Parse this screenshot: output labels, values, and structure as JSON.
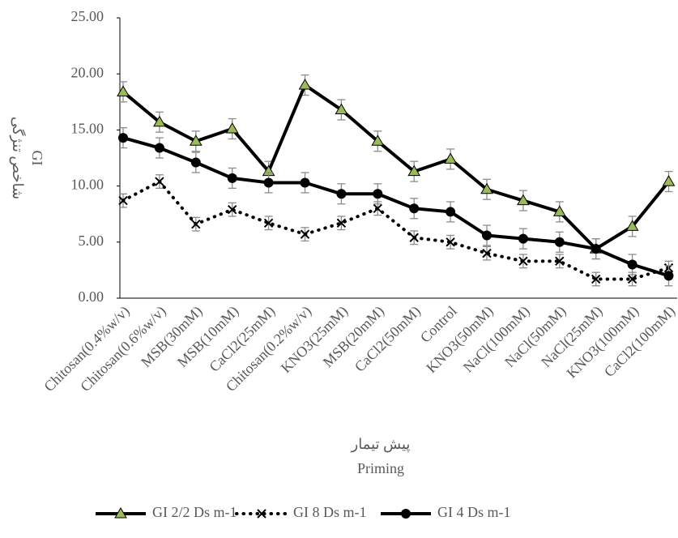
{
  "chart_data": {
    "type": "line",
    "y_label": [
      "شاخص تنژگی",
      "GI"
    ],
    "x_label": [
      "پیش تیمار",
      "Priming"
    ],
    "categories": [
      "Chitosan(0.4%w/v)",
      "Chitosan(0.6%w/v)",
      "MSB(30mM)",
      "MSB(10mM)",
      "CaCl2(25mM)",
      "Chitosan(0.2%w/v)",
      "KNO3(25mM)",
      "MSB(20mM)",
      "CaCl2(50mM)",
      "Control",
      "KNO3(50mM)",
      "NaCl(100mM)",
      "NaCl(50mM)",
      "NaCl(25mM)",
      "KNO3(100mM)",
      "CaCl2(100mM)"
    ],
    "series": [
      {
        "name": "GI 2/2 Ds m-1",
        "color": "#000000",
        "marker": "triangle",
        "marker_color": "#9bbb59",
        "dash": false,
        "values": [
          18.4,
          15.7,
          14.0,
          15.1,
          11.3,
          19.0,
          16.8,
          14.0,
          11.3,
          12.4,
          9.7,
          8.7,
          7.7,
          4.4,
          6.4,
          10.4
        ],
        "errors": [
          0.9,
          0.9,
          0.9,
          0.9,
          0.9,
          0.9,
          0.9,
          0.9,
          0.9,
          0.9,
          0.9,
          0.9,
          0.9,
          0.9,
          0.9,
          0.9
        ]
      },
      {
        "name": "GI 8 Ds m-1",
        "color": "#000000",
        "marker": "x",
        "marker_color": "#000000",
        "dash": true,
        "values": [
          8.7,
          10.4,
          6.6,
          7.9,
          6.7,
          5.7,
          6.7,
          8.0,
          5.4,
          5.0,
          4.0,
          3.3,
          3.3,
          1.7,
          1.7,
          2.7
        ],
        "errors": [
          0.6,
          0.6,
          0.6,
          0.6,
          0.6,
          0.6,
          0.6,
          0.6,
          0.6,
          0.6,
          0.6,
          0.6,
          0.6,
          0.6,
          0.6,
          0.6
        ]
      },
      {
        "name": "GI 4 Ds m-1",
        "color": "#000000",
        "marker": "circle",
        "marker_color": "#000000",
        "dash": false,
        "values": [
          14.3,
          13.4,
          12.1,
          10.7,
          10.3,
          10.3,
          9.3,
          9.3,
          8.0,
          7.7,
          5.6,
          5.3,
          5.0,
          4.4,
          3.0,
          2.0
        ],
        "errors": [
          0.9,
          0.9,
          0.9,
          0.9,
          0.9,
          0.9,
          0.9,
          0.9,
          0.9,
          0.9,
          0.9,
          0.9,
          0.9,
          0.9,
          0.9,
          0.9
        ]
      }
    ],
    "ylim": [
      0,
      25
    ],
    "yticks": [
      {
        "value": 0,
        "label": "0.00"
      },
      {
        "value": 5,
        "label": "5.00"
      },
      {
        "value": 10,
        "label": "10.00"
      },
      {
        "value": 15,
        "label": "15.00"
      },
      {
        "value": 20,
        "label": "20.00"
      },
      {
        "value": 25,
        "label": "25.00"
      }
    ],
    "grid": false,
    "legend": "bottom"
  }
}
